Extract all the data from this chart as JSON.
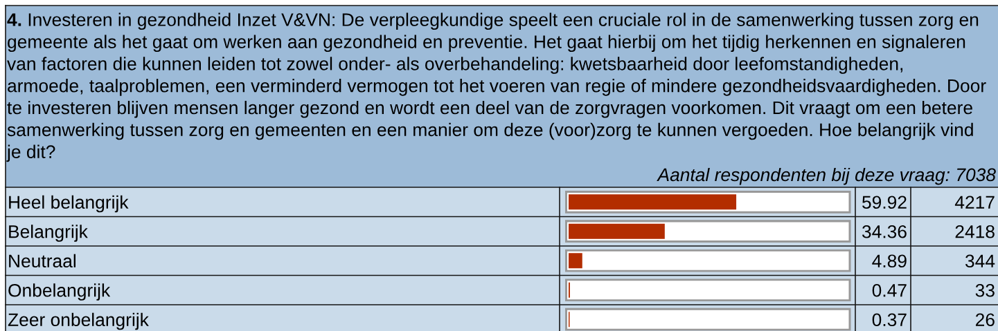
{
  "chart_data": {
    "type": "bar",
    "orientation": "horizontal",
    "title": "4. Investeren in gezondheid Inzet V&VN: De verpleegkundige speelt een cruciale rol in de samenwerking tussen zorg en\ngemeente als het gaat om werken aan gezondheid en preventie. Het gaat hierbij om het tijdig herkennen en signaleren\nvan factoren die kunnen leiden tot zowel onder- als overbehandeling: kwetsbaarheid door leefomstandigheden,\narmoede, taalproblemen, een verminderd vermogen tot het voeren van regie of mindere gezondheidsvaardigheden. Door\nte investeren blijven mensen langer gezond en wordt een deel van de zorgvragen voorkomen. Dit vraagt om een betere\nsamenwerking tussen zorg en gemeenten en een manier om deze (voor)zorg te kunnen vergoeden. Hoe belangrijk vind\nje dit?",
    "subtitle": "Aantal respondenten bij deze vraag: 7038",
    "categories": [
      "Heel belangrijk",
      "Belangrijk",
      "Neutraal",
      "Onbelangrijk",
      "Zeer onbelangrijk"
    ],
    "values": [
      59.92,
      34.36,
      4.89,
      0.47,
      0.37
    ],
    "color": "#b32d00",
    "xlim": [
      0,
      100
    ],
    "data_labels": true,
    "tick_labels": "y",
    "annotations": [
      "4217",
      "2418",
      "344",
      "33",
      "26"
    ]
  }
}
